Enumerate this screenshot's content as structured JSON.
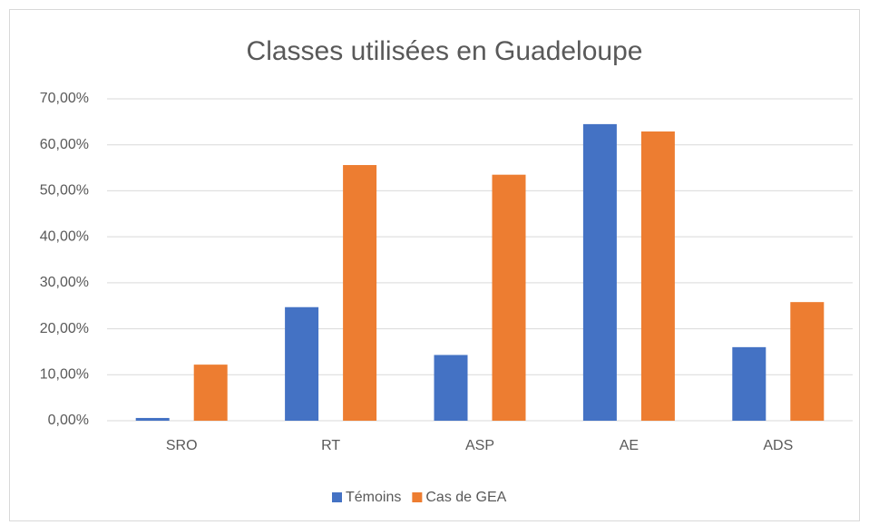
{
  "chart_data": {
    "type": "bar",
    "title": "Classes utilisées en Guadeloupe",
    "categories": [
      "SRO",
      "RT",
      "ASP",
      "AE",
      "ADS"
    ],
    "series": [
      {
        "name": "Témoins",
        "color": "#4472c4",
        "values": [
          0.6,
          24.7,
          14.3,
          64.5,
          16.0
        ]
      },
      {
        "name": "Cas de GEA",
        "color": "#ed7d31",
        "values": [
          12.2,
          55.6,
          53.5,
          62.9,
          25.8
        ]
      }
    ],
    "ylim": [
      0,
      70
    ],
    "yticks": [
      {
        "value": 0,
        "label": "0,00%"
      },
      {
        "value": 10,
        "label": "10,00%"
      },
      {
        "value": 20,
        "label": "20,00%"
      },
      {
        "value": 30,
        "label": "30,00%"
      },
      {
        "value": 40,
        "label": "40,00%"
      },
      {
        "value": 50,
        "label": "50,00%"
      },
      {
        "value": 60,
        "label": "60,00%"
      },
      {
        "value": 70,
        "label": "70,00%"
      }
    ],
    "grid": true,
    "legend": "bottom"
  }
}
